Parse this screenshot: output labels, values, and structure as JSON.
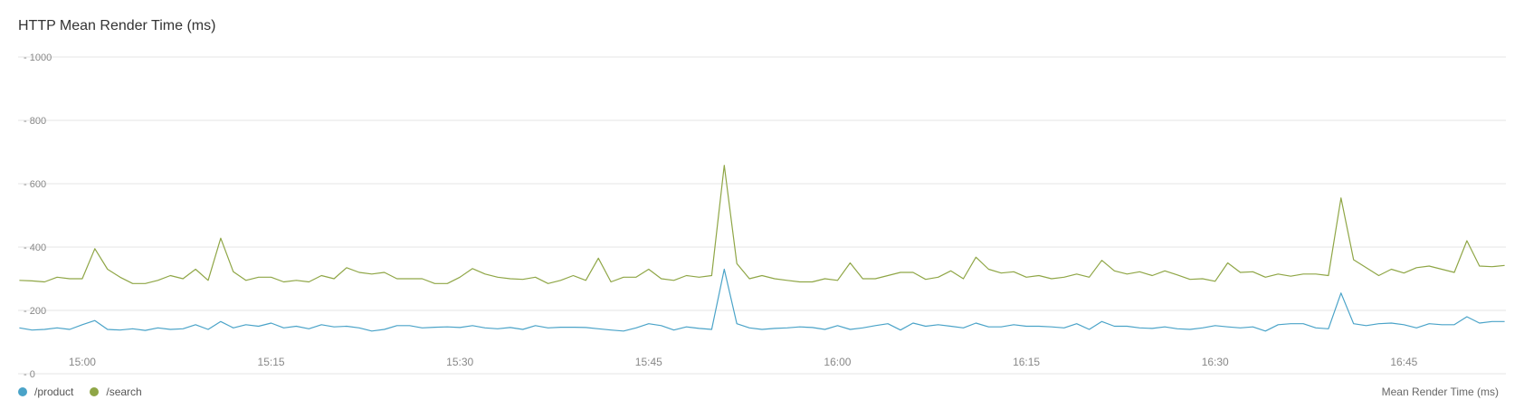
{
  "title": "HTTP Mean Render Time (ms)",
  "axis_caption": "Mean Render Time (ms)",
  "colors": {
    "product": "#4aa3c8",
    "search": "#8fa646",
    "grid": "#e5e5e5",
    "tick": "#888888"
  },
  "legend": [
    {
      "label": "/product",
      "color": "#4aa3c8"
    },
    {
      "label": "/search",
      "color": "#8fa646"
    }
  ],
  "chart_data": {
    "type": "line",
    "title": "HTTP Mean Render Time (ms)",
    "ylabel": "Mean Render Time (ms)",
    "ylim": [
      0,
      1000
    ],
    "y_ticks": [
      0,
      200,
      400,
      600,
      800,
      1000
    ],
    "y_tick_labels": [
      "0",
      "200",
      "400",
      "600",
      "800",
      "1000"
    ],
    "x_time_range": [
      "14:55",
      "16:53"
    ],
    "x_tick_times": [
      "15:00",
      "15:15",
      "15:30",
      "15:45",
      "16:00",
      "16:15",
      "16:30",
      "16:45"
    ],
    "x_tick_labels": [
      "15:00",
      "15:15",
      "15:30",
      "15:45",
      "16:00",
      "16:15",
      "16:30",
      "16:45"
    ],
    "grid": true,
    "legend_position": "bottom-left",
    "series": [
      {
        "name": "/product",
        "color": "#4aa3c8",
        "points": [
          [
            "14:55",
            145
          ],
          [
            "14:56",
            138
          ],
          [
            "14:57",
            140
          ],
          [
            "14:58",
            145
          ],
          [
            "14:59",
            140
          ],
          [
            "15:00",
            155
          ],
          [
            "15:01",
            168
          ],
          [
            "15:02",
            140
          ],
          [
            "15:03",
            138
          ],
          [
            "15:04",
            142
          ],
          [
            "15:05",
            137
          ],
          [
            "15:06",
            145
          ],
          [
            "15:07",
            140
          ],
          [
            "15:08",
            142
          ],
          [
            "15:09",
            155
          ],
          [
            "15:10",
            140
          ],
          [
            "15:11",
            165
          ],
          [
            "15:12",
            145
          ],
          [
            "15:13",
            155
          ],
          [
            "15:14",
            150
          ],
          [
            "15:15",
            160
          ],
          [
            "15:16",
            145
          ],
          [
            "15:17",
            150
          ],
          [
            "15:18",
            142
          ],
          [
            "15:19",
            155
          ],
          [
            "15:20",
            148
          ],
          [
            "15:21",
            150
          ],
          [
            "15:22",
            145
          ],
          [
            "15:23",
            135
          ],
          [
            "15:24",
            140
          ],
          [
            "15:25",
            152
          ],
          [
            "15:26",
            152
          ],
          [
            "15:27",
            145
          ],
          [
            "15:28",
            147
          ],
          [
            "15:29",
            148
          ],
          [
            "15:30",
            146
          ],
          [
            "15:31",
            152
          ],
          [
            "15:32",
            145
          ],
          [
            "15:33",
            142
          ],
          [
            "15:34",
            146
          ],
          [
            "15:35",
            140
          ],
          [
            "15:36",
            152
          ],
          [
            "15:37",
            145
          ],
          [
            "15:38",
            147
          ],
          [
            "15:39",
            147
          ],
          [
            "15:40",
            146
          ],
          [
            "15:41",
            142
          ],
          [
            "15:42",
            138
          ],
          [
            "15:43",
            135
          ],
          [
            "15:44",
            145
          ],
          [
            "15:45",
            158
          ],
          [
            "15:46",
            152
          ],
          [
            "15:47",
            138
          ],
          [
            "15:48",
            148
          ],
          [
            "15:49",
            143
          ],
          [
            "15:50",
            140
          ],
          [
            "15:51",
            330
          ],
          [
            "15:52",
            158
          ],
          [
            "15:53",
            145
          ],
          [
            "15:54",
            140
          ],
          [
            "15:55",
            143
          ],
          [
            "15:56",
            145
          ],
          [
            "15:57",
            148
          ],
          [
            "15:58",
            146
          ],
          [
            "15:59",
            140
          ],
          [
            "16:00",
            152
          ],
          [
            "16:01",
            140
          ],
          [
            "16:02",
            145
          ],
          [
            "16:03",
            152
          ],
          [
            "16:04",
            158
          ],
          [
            "16:05",
            138
          ],
          [
            "16:06",
            160
          ],
          [
            "16:07",
            150
          ],
          [
            "16:08",
            155
          ],
          [
            "16:09",
            150
          ],
          [
            "16:10",
            145
          ],
          [
            "16:11",
            160
          ],
          [
            "16:12",
            148
          ],
          [
            "16:13",
            148
          ],
          [
            "16:14",
            155
          ],
          [
            "16:15",
            150
          ],
          [
            "16:16",
            150
          ],
          [
            "16:17",
            148
          ],
          [
            "16:18",
            145
          ],
          [
            "16:19",
            158
          ],
          [
            "16:20",
            140
          ],
          [
            "16:21",
            165
          ],
          [
            "16:22",
            150
          ],
          [
            "16:23",
            150
          ],
          [
            "16:24",
            145
          ],
          [
            "16:25",
            143
          ],
          [
            "16:26",
            148
          ],
          [
            "16:27",
            142
          ],
          [
            "16:28",
            140
          ],
          [
            "16:29",
            145
          ],
          [
            "16:30",
            152
          ],
          [
            "16:31",
            148
          ],
          [
            "16:32",
            145
          ],
          [
            "16:33",
            148
          ],
          [
            "16:34",
            135
          ],
          [
            "16:35",
            155
          ],
          [
            "16:36",
            158
          ],
          [
            "16:37",
            158
          ],
          [
            "16:38",
            145
          ],
          [
            "16:39",
            142
          ],
          [
            "16:40",
            255
          ],
          [
            "16:41",
            158
          ],
          [
            "16:42",
            152
          ],
          [
            "16:43",
            158
          ],
          [
            "16:44",
            160
          ],
          [
            "16:45",
            155
          ],
          [
            "16:46",
            145
          ],
          [
            "16:47",
            158
          ],
          [
            "16:48",
            155
          ],
          [
            "16:49",
            155
          ],
          [
            "16:50",
            180
          ],
          [
            "16:51",
            160
          ],
          [
            "16:52",
            165
          ],
          [
            "16:53",
            165
          ]
        ]
      },
      {
        "name": "/search",
        "color": "#8fa646",
        "points": [
          [
            "14:55",
            295
          ],
          [
            "14:56",
            293
          ],
          [
            "14:57",
            290
          ],
          [
            "14:58",
            305
          ],
          [
            "14:59",
            300
          ],
          [
            "15:00",
            300
          ],
          [
            "15:01",
            395
          ],
          [
            "15:02",
            330
          ],
          [
            "15:03",
            305
          ],
          [
            "15:04",
            285
          ],
          [
            "15:05",
            285
          ],
          [
            "15:06",
            295
          ],
          [
            "15:07",
            310
          ],
          [
            "15:08",
            300
          ],
          [
            "15:09",
            330
          ],
          [
            "15:10",
            295
          ],
          [
            "15:11",
            428
          ],
          [
            "15:12",
            322
          ],
          [
            "15:13",
            295
          ],
          [
            "15:14",
            305
          ],
          [
            "15:15",
            305
          ],
          [
            "15:16",
            290
          ],
          [
            "15:17",
            295
          ],
          [
            "15:18",
            290
          ],
          [
            "15:19",
            310
          ],
          [
            "15:20",
            300
          ],
          [
            "15:21",
            335
          ],
          [
            "15:22",
            320
          ],
          [
            "15:23",
            315
          ],
          [
            "15:24",
            320
          ],
          [
            "15:25",
            300
          ],
          [
            "15:26",
            300
          ],
          [
            "15:27",
            300
          ],
          [
            "15:28",
            285
          ],
          [
            "15:29",
            285
          ],
          [
            "15:30",
            305
          ],
          [
            "15:31",
            332
          ],
          [
            "15:32",
            315
          ],
          [
            "15:33",
            305
          ],
          [
            "15:34",
            300
          ],
          [
            "15:35",
            298
          ],
          [
            "15:36",
            305
          ],
          [
            "15:37",
            285
          ],
          [
            "15:38",
            295
          ],
          [
            "15:39",
            310
          ],
          [
            "15:40",
            295
          ],
          [
            "15:41",
            365
          ],
          [
            "15:42",
            290
          ],
          [
            "15:43",
            305
          ],
          [
            "15:44",
            305
          ],
          [
            "15:45",
            330
          ],
          [
            "15:46",
            300
          ],
          [
            "15:47",
            295
          ],
          [
            "15:48",
            310
          ],
          [
            "15:49",
            305
          ],
          [
            "15:50",
            310
          ],
          [
            "15:51",
            658
          ],
          [
            "15:52",
            348
          ],
          [
            "15:53",
            300
          ],
          [
            "15:54",
            310
          ],
          [
            "15:55",
            300
          ],
          [
            "15:56",
            295
          ],
          [
            "15:57",
            290
          ],
          [
            "15:58",
            290
          ],
          [
            "15:59",
            300
          ],
          [
            "16:00",
            295
          ],
          [
            "16:01",
            350
          ],
          [
            "16:02",
            300
          ],
          [
            "16:03",
            300
          ],
          [
            "16:04",
            310
          ],
          [
            "16:05",
            320
          ],
          [
            "16:06",
            320
          ],
          [
            "16:07",
            298
          ],
          [
            "16:08",
            305
          ],
          [
            "16:09",
            325
          ],
          [
            "16:10",
            300
          ],
          [
            "16:11",
            368
          ],
          [
            "16:12",
            330
          ],
          [
            "16:13",
            318
          ],
          [
            "16:14",
            322
          ],
          [
            "16:15",
            305
          ],
          [
            "16:16",
            310
          ],
          [
            "16:17",
            300
          ],
          [
            "16:18",
            305
          ],
          [
            "16:19",
            315
          ],
          [
            "16:20",
            305
          ],
          [
            "16:21",
            358
          ],
          [
            "16:22",
            325
          ],
          [
            "16:23",
            315
          ],
          [
            "16:24",
            322
          ],
          [
            "16:25",
            310
          ],
          [
            "16:26",
            325
          ],
          [
            "16:27",
            312
          ],
          [
            "16:28",
            298
          ],
          [
            "16:29",
            300
          ],
          [
            "16:30",
            292
          ],
          [
            "16:31",
            350
          ],
          [
            "16:32",
            320
          ],
          [
            "16:33",
            322
          ],
          [
            "16:34",
            305
          ],
          [
            "16:35",
            315
          ],
          [
            "16:36",
            308
          ],
          [
            "16:37",
            315
          ],
          [
            "16:38",
            315
          ],
          [
            "16:39",
            310
          ],
          [
            "16:40",
            555
          ],
          [
            "16:41",
            360
          ],
          [
            "16:42",
            335
          ],
          [
            "16:43",
            310
          ],
          [
            "16:44",
            330
          ],
          [
            "16:45",
            318
          ],
          [
            "16:46",
            335
          ],
          [
            "16:47",
            340
          ],
          [
            "16:48",
            330
          ],
          [
            "16:49",
            320
          ],
          [
            "16:50",
            420
          ],
          [
            "16:51",
            340
          ],
          [
            "16:52",
            338
          ],
          [
            "16:53",
            342
          ]
        ]
      }
    ]
  }
}
